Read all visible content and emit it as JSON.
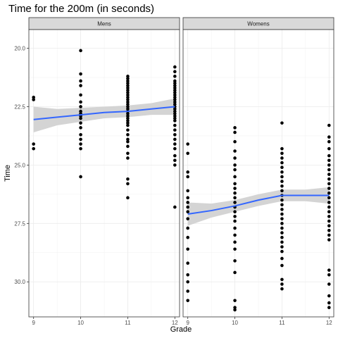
{
  "chart_data": {
    "type": "scatter",
    "title": "Time for the 200m (in seconds)",
    "xlabel": "Grade",
    "ylabel": "Time",
    "x_ticks": [
      9,
      10,
      11,
      12
    ],
    "y_ticks": [
      20.0,
      22.5,
      25.0,
      27.5,
      30.0
    ],
    "y_tick_labels": [
      "20.0",
      "22.5",
      "25.0",
      "27.5",
      "30.0"
    ],
    "xlim": [
      8.9,
      12.1
    ],
    "ylim": [
      19.2,
      31.5
    ],
    "y_reversed": true,
    "grid": true,
    "colors": {
      "points": "#000000",
      "smooth_line": "#3366ff",
      "ribbon": "#cccccc",
      "strip_fill": "#d9d9d9"
    },
    "panels": [
      {
        "name": "Mens",
        "points": [
          {
            "x": 9,
            "y": 22.1
          },
          {
            "x": 9,
            "y": 22.2
          },
          {
            "x": 9,
            "y": 24.1
          },
          {
            "x": 9,
            "y": 24.3
          },
          {
            "x": 10,
            "y": 20.1
          },
          {
            "x": 10,
            "y": 21.1
          },
          {
            "x": 10,
            "y": 21.4
          },
          {
            "x": 10,
            "y": 21.6
          },
          {
            "x": 10,
            "y": 22.0
          },
          {
            "x": 10,
            "y": 22.3
          },
          {
            "x": 10,
            "y": 22.5
          },
          {
            "x": 10,
            "y": 22.7
          },
          {
            "x": 10,
            "y": 22.8
          },
          {
            "x": 10,
            "y": 22.9
          },
          {
            "x": 10,
            "y": 23.0
          },
          {
            "x": 10,
            "y": 23.2
          },
          {
            "x": 10,
            "y": 23.4
          },
          {
            "x": 10,
            "y": 23.7
          },
          {
            "x": 10,
            "y": 23.9
          },
          {
            "x": 10,
            "y": 24.1
          },
          {
            "x": 10,
            "y": 24.3
          },
          {
            "x": 10,
            "y": 25.5
          },
          {
            "x": 11,
            "y": 21.2
          },
          {
            "x": 11,
            "y": 21.3
          },
          {
            "x": 11,
            "y": 21.4
          },
          {
            "x": 11,
            "y": 21.5
          },
          {
            "x": 11,
            "y": 21.6
          },
          {
            "x": 11,
            "y": 21.7
          },
          {
            "x": 11,
            "y": 21.8
          },
          {
            "x": 11,
            "y": 21.9
          },
          {
            "x": 11,
            "y": 22.0
          },
          {
            "x": 11,
            "y": 22.1
          },
          {
            "x": 11,
            "y": 22.2
          },
          {
            "x": 11,
            "y": 22.3
          },
          {
            "x": 11,
            "y": 22.4
          },
          {
            "x": 11,
            "y": 22.5
          },
          {
            "x": 11,
            "y": 22.6
          },
          {
            "x": 11,
            "y": 22.7
          },
          {
            "x": 11,
            "y": 22.8
          },
          {
            "x": 11,
            "y": 22.9
          },
          {
            "x": 11,
            "y": 23.0
          },
          {
            "x": 11,
            "y": 23.1
          },
          {
            "x": 11,
            "y": 23.2
          },
          {
            "x": 11,
            "y": 23.3
          },
          {
            "x": 11,
            "y": 23.5
          },
          {
            "x": 11,
            "y": 23.7
          },
          {
            "x": 11,
            "y": 23.9
          },
          {
            "x": 11,
            "y": 24.0
          },
          {
            "x": 11,
            "y": 24.2
          },
          {
            "x": 11,
            "y": 24.5
          },
          {
            "x": 11,
            "y": 24.7
          },
          {
            "x": 11,
            "y": 25.6
          },
          {
            "x": 11,
            "y": 25.8
          },
          {
            "x": 11,
            "y": 26.4
          },
          {
            "x": 12,
            "y": 20.8
          },
          {
            "x": 12,
            "y": 21.0
          },
          {
            "x": 12,
            "y": 21.2
          },
          {
            "x": 12,
            "y": 21.4
          },
          {
            "x": 12,
            "y": 21.5
          },
          {
            "x": 12,
            "y": 21.6
          },
          {
            "x": 12,
            "y": 21.7
          },
          {
            "x": 12,
            "y": 21.8
          },
          {
            "x": 12,
            "y": 21.9
          },
          {
            "x": 12,
            "y": 22.0
          },
          {
            "x": 12,
            "y": 22.1
          },
          {
            "x": 12,
            "y": 22.2
          },
          {
            "x": 12,
            "y": 22.3
          },
          {
            "x": 12,
            "y": 22.4
          },
          {
            "x": 12,
            "y": 22.5
          },
          {
            "x": 12,
            "y": 22.6
          },
          {
            "x": 12,
            "y": 22.7
          },
          {
            "x": 12,
            "y": 22.8
          },
          {
            "x": 12,
            "y": 22.9
          },
          {
            "x": 12,
            "y": 23.0
          },
          {
            "x": 12,
            "y": 23.1
          },
          {
            "x": 12,
            "y": 23.3
          },
          {
            "x": 12,
            "y": 23.5
          },
          {
            "x": 12,
            "y": 23.7
          },
          {
            "x": 12,
            "y": 23.9
          },
          {
            "x": 12,
            "y": 24.1
          },
          {
            "x": 12,
            "y": 24.3
          },
          {
            "x": 12,
            "y": 24.6
          },
          {
            "x": 12,
            "y": 24.8
          },
          {
            "x": 12,
            "y": 25.0
          },
          {
            "x": 12,
            "y": 26.8
          }
        ],
        "smooth": [
          {
            "x": 9,
            "y": 23.05,
            "lo": 22.5,
            "hi": 23.6
          },
          {
            "x": 9.5,
            "y": 22.95,
            "lo": 22.6,
            "hi": 23.3
          },
          {
            "x": 10,
            "y": 22.85,
            "lo": 22.55,
            "hi": 23.15
          },
          {
            "x": 10.5,
            "y": 22.75,
            "lo": 22.5,
            "hi": 23.0
          },
          {
            "x": 11,
            "y": 22.7,
            "lo": 22.45,
            "hi": 22.95
          },
          {
            "x": 11.5,
            "y": 22.6,
            "lo": 22.35,
            "hi": 22.85
          },
          {
            "x": 12,
            "y": 22.5,
            "lo": 22.15,
            "hi": 22.85
          }
        ]
      },
      {
        "name": "Womens",
        "points": [
          {
            "x": 9,
            "y": 24.1
          },
          {
            "x": 9,
            "y": 24.5
          },
          {
            "x": 9,
            "y": 25.3
          },
          {
            "x": 9,
            "y": 25.5
          },
          {
            "x": 9,
            "y": 26.1
          },
          {
            "x": 9,
            "y": 26.4
          },
          {
            "x": 9,
            "y": 26.6
          },
          {
            "x": 9,
            "y": 26.8
          },
          {
            "x": 9,
            "y": 27.0
          },
          {
            "x": 9,
            "y": 27.3
          },
          {
            "x": 9,
            "y": 27.7
          },
          {
            "x": 9,
            "y": 28.1
          },
          {
            "x": 9,
            "y": 28.6
          },
          {
            "x": 9,
            "y": 29.2
          },
          {
            "x": 9,
            "y": 29.7
          },
          {
            "x": 9,
            "y": 30.0
          },
          {
            "x": 9,
            "y": 30.4
          },
          {
            "x": 9,
            "y": 30.8
          },
          {
            "x": 10,
            "y": 23.4
          },
          {
            "x": 10,
            "y": 23.6
          },
          {
            "x": 10,
            "y": 24.0
          },
          {
            "x": 10,
            "y": 24.4
          },
          {
            "x": 10,
            "y": 24.7
          },
          {
            "x": 10,
            "y": 25.0
          },
          {
            "x": 10,
            "y": 25.2
          },
          {
            "x": 10,
            "y": 25.5
          },
          {
            "x": 10,
            "y": 25.8
          },
          {
            "x": 10,
            "y": 26.0
          },
          {
            "x": 10,
            "y": 26.2
          },
          {
            "x": 10,
            "y": 26.4
          },
          {
            "x": 10,
            "y": 26.6
          },
          {
            "x": 10,
            "y": 26.8
          },
          {
            "x": 10,
            "y": 27.0
          },
          {
            "x": 10,
            "y": 27.2
          },
          {
            "x": 10,
            "y": 27.4
          },
          {
            "x": 10,
            "y": 27.7
          },
          {
            "x": 10,
            "y": 28.0
          },
          {
            "x": 10,
            "y": 28.3
          },
          {
            "x": 10,
            "y": 28.6
          },
          {
            "x": 10,
            "y": 29.1
          },
          {
            "x": 10,
            "y": 29.6
          },
          {
            "x": 10,
            "y": 30.8
          },
          {
            "x": 10,
            "y": 31.1
          },
          {
            "x": 10,
            "y": 31.2
          },
          {
            "x": 11,
            "y": 23.2
          },
          {
            "x": 11,
            "y": 24.3
          },
          {
            "x": 11,
            "y": 24.5
          },
          {
            "x": 11,
            "y": 24.7
          },
          {
            "x": 11,
            "y": 24.9
          },
          {
            "x": 11,
            "y": 25.1
          },
          {
            "x": 11,
            "y": 25.3
          },
          {
            "x": 11,
            "y": 25.5
          },
          {
            "x": 11,
            "y": 25.7
          },
          {
            "x": 11,
            "y": 25.9
          },
          {
            "x": 11,
            "y": 26.1
          },
          {
            "x": 11,
            "y": 26.3
          },
          {
            "x": 11,
            "y": 26.5
          },
          {
            "x": 11,
            "y": 26.7
          },
          {
            "x": 11,
            "y": 26.9
          },
          {
            "x": 11,
            "y": 27.1
          },
          {
            "x": 11,
            "y": 27.3
          },
          {
            "x": 11,
            "y": 27.5
          },
          {
            "x": 11,
            "y": 27.7
          },
          {
            "x": 11,
            "y": 27.9
          },
          {
            "x": 11,
            "y": 28.1
          },
          {
            "x": 11,
            "y": 28.3
          },
          {
            "x": 11,
            "y": 28.5
          },
          {
            "x": 11,
            "y": 28.7
          },
          {
            "x": 11,
            "y": 29.0
          },
          {
            "x": 11,
            "y": 29.3
          },
          {
            "x": 11,
            "y": 29.9
          },
          {
            "x": 11,
            "y": 30.1
          },
          {
            "x": 11,
            "y": 30.3
          },
          {
            "x": 12,
            "y": 23.3
          },
          {
            "x": 12,
            "y": 23.8
          },
          {
            "x": 12,
            "y": 24.0
          },
          {
            "x": 12,
            "y": 24.3
          },
          {
            "x": 12,
            "y": 24.6
          },
          {
            "x": 12,
            "y": 24.8
          },
          {
            "x": 12,
            "y": 25.0
          },
          {
            "x": 12,
            "y": 25.2
          },
          {
            "x": 12,
            "y": 25.4
          },
          {
            "x": 12,
            "y": 25.6
          },
          {
            "x": 12,
            "y": 25.8
          },
          {
            "x": 12,
            "y": 26.0
          },
          {
            "x": 12,
            "y": 26.2
          },
          {
            "x": 12,
            "y": 26.4
          },
          {
            "x": 12,
            "y": 26.6
          },
          {
            "x": 12,
            "y": 26.8
          },
          {
            "x": 12,
            "y": 27.0
          },
          {
            "x": 12,
            "y": 27.2
          },
          {
            "x": 12,
            "y": 27.4
          },
          {
            "x": 12,
            "y": 27.6
          },
          {
            "x": 12,
            "y": 27.8
          },
          {
            "x": 12,
            "y": 28.0
          },
          {
            "x": 12,
            "y": 28.2
          },
          {
            "x": 12,
            "y": 29.5
          },
          {
            "x": 12,
            "y": 29.7
          },
          {
            "x": 12,
            "y": 30.1
          },
          {
            "x": 12,
            "y": 30.6
          },
          {
            "x": 12,
            "y": 30.9
          },
          {
            "x": 12,
            "y": 31.1
          }
        ],
        "smooth": [
          {
            "x": 9,
            "y": 27.1,
            "lo": 26.6,
            "hi": 27.6
          },
          {
            "x": 9.5,
            "y": 26.95,
            "lo": 26.65,
            "hi": 27.25
          },
          {
            "x": 10,
            "y": 26.75,
            "lo": 26.5,
            "hi": 27.0
          },
          {
            "x": 10.5,
            "y": 26.5,
            "lo": 26.25,
            "hi": 26.75
          },
          {
            "x": 11,
            "y": 26.3,
            "lo": 26.05,
            "hi": 26.55
          },
          {
            "x": 11.5,
            "y": 26.3,
            "lo": 26.05,
            "hi": 26.55
          },
          {
            "x": 12,
            "y": 26.3,
            "lo": 25.95,
            "hi": 26.65
          }
        ]
      }
    ]
  }
}
